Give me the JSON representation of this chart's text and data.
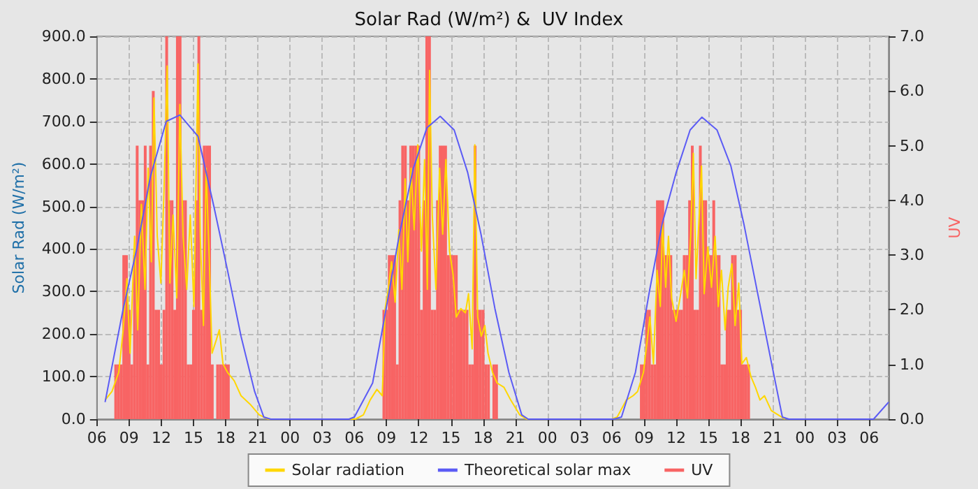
{
  "chart_data": {
    "type": "line",
    "title": "Solar Rad (W/m²) &  UV Index",
    "ylabel": "Solar Rad (W/m²)",
    "y2label": "UV",
    "xlim": [
      6,
      79.8
    ],
    "xticks": [
      {
        "value": 6,
        "label": "06"
      },
      {
        "value": 9,
        "label": "09"
      },
      {
        "value": 12,
        "label": "12"
      },
      {
        "value": 15,
        "label": "15"
      },
      {
        "value": 18,
        "label": "18"
      },
      {
        "value": 21,
        "label": "21"
      },
      {
        "value": 24,
        "label": "00"
      },
      {
        "value": 27,
        "label": "03"
      },
      {
        "value": 30,
        "label": "06"
      },
      {
        "value": 33,
        "label": "09"
      },
      {
        "value": 36,
        "label": "12"
      },
      {
        "value": 39,
        "label": "15"
      },
      {
        "value": 42,
        "label": "18"
      },
      {
        "value": 45,
        "label": "21"
      },
      {
        "value": 48,
        "label": "00"
      },
      {
        "value": 51,
        "label": "03"
      },
      {
        "value": 54,
        "label": "06"
      },
      {
        "value": 57,
        "label": "09"
      },
      {
        "value": 60,
        "label": "12"
      },
      {
        "value": 63,
        "label": "15"
      },
      {
        "value": 66,
        "label": "18"
      },
      {
        "value": 69,
        "label": "21"
      },
      {
        "value": 72,
        "label": "00"
      },
      {
        "value": 75,
        "label": "03"
      },
      {
        "value": 78,
        "label": "06"
      }
    ],
    "ylim": [
      0,
      900
    ],
    "yticks": [
      {
        "value": 0,
        "label": "0.0"
      },
      {
        "value": 100,
        "label": "100.0"
      },
      {
        "value": 200,
        "label": "200.0"
      },
      {
        "value": 300,
        "label": "300.0"
      },
      {
        "value": 400,
        "label": "400.0"
      },
      {
        "value": 500,
        "label": "500.0"
      },
      {
        "value": 600,
        "label": "600.0"
      },
      {
        "value": 700,
        "label": "700.0"
      },
      {
        "value": 800,
        "label": "800.0"
      },
      {
        "value": 900,
        "label": "900.0"
      }
    ],
    "y2lim": [
      0,
      7
    ],
    "y2ticks": [
      {
        "value": 0,
        "label": "0.0"
      },
      {
        "value": 1,
        "label": "1.0"
      },
      {
        "value": 2,
        "label": "2.0"
      },
      {
        "value": 3,
        "label": "3.0"
      },
      {
        "value": 4,
        "label": "4.0"
      },
      {
        "value": 5,
        "label": "5.0"
      },
      {
        "value": 6,
        "label": "6.0"
      },
      {
        "value": 7,
        "label": "7.0"
      }
    ],
    "grid": true,
    "legend": "bottom",
    "marker": "none",
    "line_style": "solid",
    "series": [
      {
        "name": "UV",
        "type": "bar",
        "axis": "y2",
        "color": "#f86464",
        "x": [
          7.75,
          8,
          8.25,
          8.5,
          8.75,
          9,
          9.25,
          9.5,
          9.75,
          10,
          10.25,
          10.5,
          10.75,
          11,
          11.25,
          11.5,
          11.75,
          12,
          12.25,
          12.5,
          12.75,
          13,
          13.25,
          13.5,
          13.75,
          14,
          14.25,
          14.5,
          14.75,
          15,
          15.25,
          15.5,
          15.75,
          16,
          16.25,
          16.5,
          16.75,
          17,
          17.25,
          17.5,
          17.75,
          18,
          18.25,
          18.5,
          32.75,
          33,
          33.25,
          33.5,
          33.75,
          34,
          34.25,
          34.5,
          34.75,
          35,
          35.25,
          35.5,
          35.75,
          36,
          36.25,
          36.5,
          36.75,
          37,
          37.25,
          37.5,
          37.75,
          38,
          38.25,
          38.5,
          38.75,
          39,
          39.25,
          39.5,
          39.75,
          40,
          40.25,
          40.5,
          40.75,
          41,
          41.25,
          41.5,
          41.75,
          42,
          42.25,
          42.5,
          42.75,
          43,
          43.25,
          43.5,
          56.75,
          57,
          57.25,
          57.5,
          57.75,
          58,
          58.25,
          58.5,
          58.75,
          59,
          59.25,
          59.5,
          59.75,
          60,
          60.25,
          60.5,
          60.75,
          61,
          61.25,
          61.5,
          61.75,
          62,
          62.25,
          62.5,
          62.75,
          63,
          63.25,
          63.5,
          63.75,
          64,
          64.25,
          64.5,
          64.75,
          65,
          65.25,
          65.5,
          65.75,
          66,
          66.25,
          66.5,
          66.75,
          67
        ],
        "values": [
          1,
          1,
          1,
          3,
          3,
          2,
          1,
          3,
          5,
          4,
          4,
          5,
          1,
          5,
          6,
          2,
          2,
          1,
          2,
          7,
          4,
          4,
          2,
          7,
          7,
          4,
          4,
          1,
          1,
          2,
          4,
          7,
          2,
          5,
          5,
          5,
          1,
          0,
          1,
          1,
          1,
          1,
          1,
          0,
          2,
          2,
          3,
          3,
          3,
          1,
          4,
          5,
          5,
          4,
          5,
          5,
          5,
          5,
          2,
          4,
          7,
          7,
          2,
          2,
          4,
          5,
          5,
          5,
          3,
          3,
          3,
          3,
          2,
          2,
          2,
          2,
          1,
          1,
          5,
          2,
          2,
          2,
          1,
          1,
          0,
          1,
          1,
          0,
          1,
          1,
          2,
          2,
          1,
          1,
          4,
          4,
          4,
          3,
          3,
          3,
          2,
          2,
          2,
          2,
          3,
          3,
          4,
          5,
          2,
          2,
          5,
          4,
          4,
          3,
          3,
          4,
          3,
          3,
          1,
          1,
          2,
          2,
          3,
          3,
          2,
          2,
          1,
          1,
          1,
          0
        ]
      },
      {
        "name": "Solar radiation",
        "color": "#ffd700",
        "x": [
          6.76,
          7.4,
          8.03,
          8.45,
          8.79,
          9.09,
          9.51,
          9.8,
          10.14,
          10.48,
          10.77,
          11.07,
          11.32,
          11.62,
          11.96,
          12.25,
          12.55,
          12.8,
          13.1,
          13.44,
          13.73,
          14.03,
          14.37,
          14.7,
          15.04,
          15.42,
          15.63,
          15.93,
          16.18,
          16.48,
          16.73,
          17.11,
          17.41,
          17.75,
          18.17,
          18.8,
          19.43,
          20.28,
          21.13,
          21.97,
          30.1,
          30.84,
          31.47,
          32.1,
          32.6,
          32.87,
          33.16,
          33.46,
          33.8,
          34.14,
          34.43,
          34.73,
          34.98,
          35.28,
          35.57,
          35.91,
          36.25,
          36.54,
          36.8,
          37.01,
          37.26,
          37.6,
          37.94,
          38.23,
          38.53,
          38.87,
          39.2,
          39.5,
          39.92,
          40.35,
          40.64,
          40.98,
          41.23,
          41.49,
          41.83,
          42.16,
          42.46,
          42.88,
          43.3,
          43.94,
          44.57,
          45.42,
          46.05,
          54,
          54.5,
          55.35,
          55.98,
          56.4,
          56.95,
          57.25,
          57.55,
          57.88,
          58.22,
          58.52,
          58.73,
          59.02,
          59.28,
          59.57,
          59.99,
          60.42,
          60.76,
          61.05,
          61.35,
          61.6,
          61.85,
          62.11,
          62.36,
          62.61,
          62.95,
          63.29,
          63.63,
          63.92,
          64.22,
          64.56,
          64.85,
          65.19,
          65.49,
          65.83,
          66.12,
          66.54,
          66.97,
          67.39,
          67.81,
          68.23,
          68.87,
          69.5,
          70.14
        ],
        "values": [
          45,
          65,
          110,
          210,
          330,
          155,
          430,
          210,
          505,
          305,
          590,
          370,
          755,
          430,
          320,
          535,
          830,
          320,
          480,
          285,
          740,
          430,
          305,
          480,
          265,
          835,
          430,
          220,
          590,
          370,
          155,
          185,
          210,
          130,
          110,
          90,
          55,
          35,
          10,
          0,
          0,
          10,
          45,
          70,
          55,
          260,
          305,
          370,
          275,
          445,
          305,
          565,
          370,
          590,
          445,
          645,
          395,
          610,
          305,
          820,
          480,
          305,
          590,
          435,
          610,
          395,
          340,
          240,
          260,
          250,
          295,
          165,
          645,
          240,
          195,
          220,
          155,
          110,
          85,
          75,
          45,
          10,
          0,
          0,
          5,
          45,
          55,
          65,
          110,
          175,
          240,
          130,
          350,
          265,
          460,
          310,
          430,
          285,
          230,
          295,
          350,
          285,
          430,
          625,
          330,
          460,
          595,
          295,
          405,
          310,
          430,
          265,
          350,
          210,
          310,
          365,
          220,
          320,
          130,
          145,
          100,
          75,
          45,
          55,
          20,
          10,
          0
        ]
      },
      {
        "name": "Theoretical solar max",
        "color": "#5b5bf5",
        "x": [
          6.76,
          8.45,
          9.71,
          10.98,
          12.46,
          13.73,
          15.42,
          16.9,
          18.17,
          19.43,
          20.7,
          21.55,
          22.2,
          29.5,
          30,
          31.7,
          32.96,
          34.2,
          35.5,
          36.76,
          38,
          39.3,
          40.56,
          41.8,
          43.1,
          44.4,
          45.6,
          46.2,
          54.2,
          54.9,
          56.2,
          57.5,
          58.7,
          60,
          61.3,
          62.4,
          63.8,
          65.1,
          66.3,
          67.6,
          68.9,
          69.9,
          70.5,
          78.4,
          79.8
        ],
        "values": [
          40,
          260,
          400,
          570,
          700,
          715,
          665,
          500,
          350,
          195,
          65,
          5,
          0,
          0,
          5,
          85,
          260,
          435,
          590,
          685,
          712,
          680,
          580,
          435,
          260,
          110,
          10,
          0,
          0,
          5,
          110,
          300,
          460,
          580,
          680,
          710,
          680,
          595,
          460,
          295,
          130,
          5,
          0,
          0,
          40
        ]
      }
    ]
  }
}
